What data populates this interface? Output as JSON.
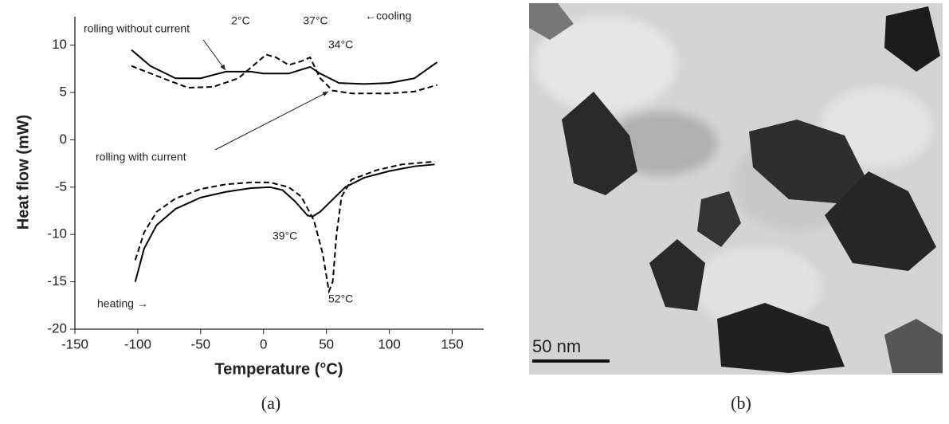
{
  "chart_data": {
    "type": "line",
    "panel_label": "(a)",
    "x_label": "Temperature (°C)",
    "y_label": "Heat flow (mW)",
    "xlim": [
      -150,
      175
    ],
    "xticks": [
      -150,
      -100,
      -50,
      0,
      50,
      100,
      150
    ],
    "ylim": [
      -20,
      13
    ],
    "yticks": [
      -20,
      -15,
      -10,
      -5,
      0,
      5,
      10
    ],
    "series": [
      {
        "color": "#000000",
        "dashed": false,
        "x": [
          -105,
          -90,
          -70,
          -50,
          -30,
          -10,
          0,
          20,
          37,
          45,
          60,
          80,
          100,
          120,
          138
        ],
        "values": [
          9.5,
          7.8,
          6.5,
          6.5,
          7.2,
          7.2,
          7.0,
          7.0,
          7.7,
          7.0,
          6.0,
          5.9,
          6.0,
          6.5,
          8.2
        ]
      },
      {
        "color": "#000000",
        "dashed": true,
        "x": [
          -105,
          -80,
          -60,
          -40,
          -20,
          -5,
          2,
          10,
          20,
          30,
          37,
          45,
          55,
          70,
          100,
          120,
          138
        ],
        "values": [
          7.8,
          6.5,
          5.5,
          5.6,
          6.5,
          8.2,
          9.0,
          8.7,
          7.9,
          8.3,
          8.7,
          6.5,
          5.2,
          4.9,
          4.9,
          5.1,
          5.8
        ]
      },
      {
        "color": "#000000",
        "dashed": false,
        "x": [
          -102,
          -95,
          -85,
          -70,
          -50,
          -30,
          -10,
          5,
          15,
          25,
          35,
          39,
          45,
          55,
          65,
          80,
          100,
          120,
          136
        ],
        "values": [
          -15,
          -11.5,
          -9,
          -7.3,
          -6.1,
          -5.5,
          -5.1,
          -5.0,
          -5.3,
          -6.5,
          -8.0,
          -8.1,
          -7.6,
          -6.3,
          -5.0,
          -4.0,
          -3.3,
          -2.8,
          -2.6
        ]
      },
      {
        "color": "#000000",
        "dashed": true,
        "x": [
          -102,
          -95,
          -85,
          -70,
          -50,
          -30,
          -10,
          5,
          20,
          30,
          40,
          47,
          52,
          55,
          58,
          62,
          70,
          90,
          110,
          136
        ],
        "values": [
          -12.7,
          -9.8,
          -7.6,
          -6.2,
          -5.2,
          -4.7,
          -4.5,
          -4.5,
          -5.0,
          -6.0,
          -8.5,
          -12,
          -16.0,
          -15.0,
          -10,
          -6.0,
          -4.2,
          -3.2,
          -2.6,
          -2.3
        ]
      }
    ],
    "annotations": [
      "rolling without current",
      "rolling with current",
      "2°C",
      "37°C",
      "34°C",
      "39°C",
      "52°C",
      "←cooling",
      "heating →"
    ]
  },
  "image": {
    "scale_bar": "50 nm",
    "panel_label": "(b)"
  }
}
